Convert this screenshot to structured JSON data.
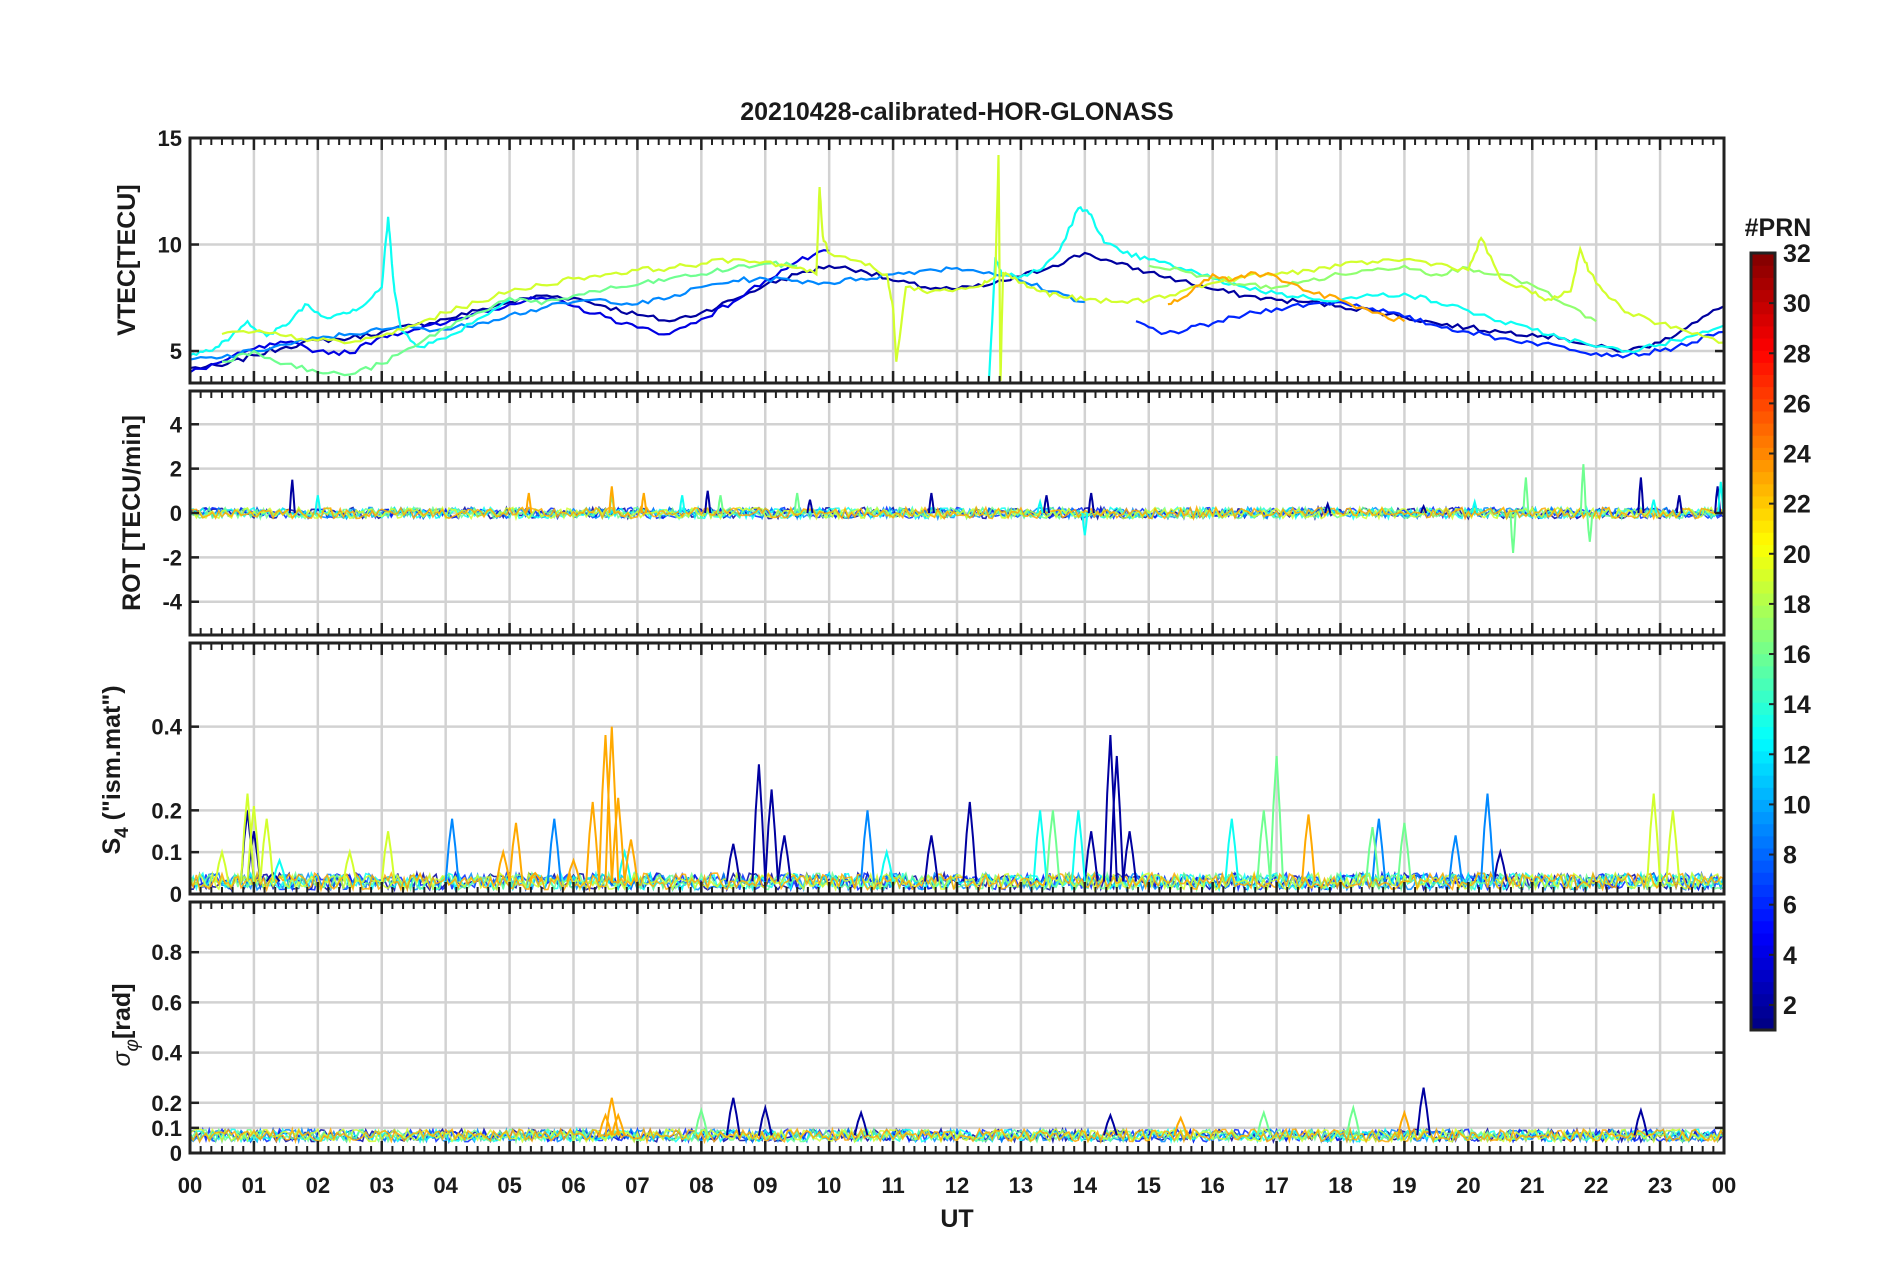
{
  "chart_data": {
    "title": "20210428-calibrated-HOR-GLONASS",
    "xlabel": "UT",
    "x_tick_labels": [
      "00",
      "01",
      "02",
      "03",
      "04",
      "05",
      "06",
      "07",
      "08",
      "09",
      "10",
      "11",
      "12",
      "13",
      "14",
      "15",
      "16",
      "17",
      "18",
      "19",
      "20",
      "21",
      "22",
      "23",
      "00"
    ],
    "xlim": [
      0,
      24
    ],
    "colorbar": {
      "label": "#PRN",
      "range": [
        1,
        32
      ],
      "tick_values": [
        2,
        4,
        6,
        8,
        10,
        12,
        14,
        16,
        18,
        20,
        22,
        24,
        26,
        28,
        30,
        32
      ],
      "tick_labels": [
        "2",
        "4",
        "6",
        "8",
        "10",
        "12",
        "14",
        "16",
        "18",
        "20",
        "22",
        "24",
        "26",
        "28",
        "30",
        "32"
      ],
      "colormap": "jet"
    },
    "panels": [
      {
        "type": "line",
        "id": "vtec",
        "ylabel": "VTEC[TECU]",
        "ylim": [
          3.5,
          15
        ],
        "y_ticks": [
          5,
          10,
          15
        ],
        "y_tick_labels": [
          "5",
          "10",
          "15"
        ],
        "series": [
          {
            "name": "PRN 2",
            "prn": 2,
            "x": [
              0,
              0.5,
              1,
              1.5,
              2,
              2.5,
              3,
              3.5,
              4,
              4.5,
              5,
              5.5,
              6,
              6.5,
              7,
              7.5,
              8,
              8.5,
              9,
              9.5,
              10,
              10.5,
              11,
              11.5,
              12,
              12.5,
              13,
              13.5,
              14,
              14.5,
              15,
              15.5,
              16,
              16.5,
              17,
              17.5,
              18,
              18.5,
              19,
              19.5,
              20,
              20.5,
              21,
              21.5,
              22,
              22.5,
              23,
              23.5,
              24
            ],
            "y": [
              4.2,
              4.3,
              4.8,
              5.2,
              5.5,
              5.6,
              5.9,
              6.2,
              6.5,
              6.9,
              7.3,
              7.6,
              7.5,
              7.1,
              6.7,
              6.4,
              6.8,
              7.4,
              8.1,
              8.6,
              9.0,
              8.8,
              8.3,
              8.0,
              7.9,
              8.1,
              8.5,
              9.0,
              9.6,
              9.1,
              8.7,
              8.3,
              7.9,
              7.6,
              7.4,
              7.3,
              7.1,
              6.9,
              6.6,
              6.3,
              6.1,
              5.9,
              5.8,
              5.6,
              5.2,
              5.0,
              5.4,
              6.3,
              7.1
            ]
          },
          {
            "name": "PRN 4",
            "prn": 4,
            "x": [
              0,
              0.5,
              1,
              1.5,
              2,
              2.5,
              3,
              3.5,
              4,
              4.5,
              5,
              5.5,
              6,
              6.5,
              7,
              7.5,
              8,
              8.5,
              9,
              9.5,
              10
            ],
            "y": [
              4.0,
              4.5,
              5.1,
              5.4,
              5.0,
              4.9,
              5.7,
              6.0,
              6.3,
              6.8,
              7.2,
              7.5,
              7.1,
              6.6,
              6.1,
              5.8,
              6.5,
              7.3,
              8.3,
              9.2,
              9.7
            ]
          },
          {
            "name": "PRN 6",
            "prn": 6,
            "x": [
              14.8,
              15.2,
              15.6,
              16,
              16.5,
              17,
              17.5,
              18,
              18.5,
              19,
              19.5,
              20,
              20.5,
              21,
              21.5,
              22,
              22.5,
              23,
              23.5,
              24
            ],
            "y": [
              6.4,
              5.8,
              6.0,
              6.3,
              6.7,
              7.0,
              7.2,
              7.3,
              7.0,
              6.6,
              6.2,
              5.9,
              5.6,
              5.4,
              5.2,
              4.9,
              4.8,
              5.0,
              5.4,
              5.9
            ]
          },
          {
            "name": "PRN 9",
            "prn": 9,
            "x": [
              0,
              0.5,
              1,
              1.5,
              2,
              2.5,
              3,
              3.5,
              4,
              4.5,
              5,
              5.5,
              6,
              6.5,
              7,
              7.5,
              8,
              8.5,
              9,
              9.5,
              10,
              10.5,
              11,
              11.5,
              12,
              12.5,
              13,
              13.5,
              14
            ],
            "y": [
              4.6,
              4.7,
              5.0,
              5.3,
              5.6,
              5.8,
              6.0,
              6.1,
              6.0,
              6.3,
              6.7,
              7.0,
              7.3,
              7.4,
              7.2,
              7.5,
              8.0,
              8.3,
              8.4,
              8.3,
              8.2,
              8.4,
              8.6,
              8.8,
              8.9,
              8.7,
              8.3,
              7.8,
              7.3
            ]
          },
          {
            "name": "PRN 13",
            "prn": 13,
            "x": [
              0,
              0.3,
              0.6,
              0.9,
              1.2,
              1.5,
              1.8,
              2.1,
              2.4,
              2.7,
              3.0,
              3.1,
              3.15,
              3.2,
              3.3,
              3.6,
              4.0,
              4.5,
              5.0
            ],
            "y": [
              4.8,
              5.0,
              5.5,
              6.4,
              5.7,
              6.2,
              7.2,
              6.6,
              6.8,
              7.1,
              8.0,
              11.3,
              9.5,
              7.8,
              6.0,
              5.2,
              5.6,
              6.5,
              7.4
            ]
          },
          {
            "name": "PRN 13b",
            "prn": 13,
            "x": [
              12.5,
              12.6,
              12.7,
              13,
              13.3,
              13.6,
              13.9,
              14.1,
              14.3,
              14.6,
              15,
              15.5,
              16,
              16.5,
              17,
              17.5,
              18,
              18.5,
              19,
              19.5,
              20,
              20.5,
              21,
              21.5,
              22,
              22.5,
              23,
              23.5,
              24
            ],
            "y": [
              3.6,
              9.4,
              8.6,
              8.5,
              8.8,
              9.7,
              11.7,
              11.4,
              10.1,
              9.6,
              9.3,
              8.9,
              8.4,
              8.0,
              7.7,
              7.5,
              7.4,
              7.6,
              7.7,
              7.3,
              6.9,
              6.4,
              6.0,
              5.6,
              5.2,
              5.0,
              5.3,
              5.7,
              6.2
            ]
          },
          {
            "name": "PRN 16",
            "prn": 16,
            "x": [
              0.5,
              1,
              1.5,
              2,
              2.5,
              3,
              3.5,
              4,
              4.5,
              5,
              5.5,
              6,
              6.5,
              7,
              7.5,
              8,
              8.5,
              9,
              9.5
            ],
            "y": [
              4.5,
              5.0,
              4.4,
              4.0,
              3.9,
              4.4,
              5.2,
              6.1,
              6.8,
              7.5,
              7.2,
              7.6,
              7.9,
              8.1,
              8.4,
              8.6,
              8.9,
              9.1,
              9.0
            ]
          },
          {
            "name": "PRN 17",
            "prn": 17,
            "x": [
              15,
              15.5,
              16,
              16.5,
              17,
              17.5,
              18,
              18.5,
              19,
              19.5,
              20,
              20.5,
              21,
              21.5,
              22
            ],
            "y": [
              9.0,
              8.8,
              8.4,
              8.1,
              8.0,
              8.3,
              8.6,
              8.8,
              9.0,
              8.6,
              8.9,
              8.6,
              8.1,
              7.2,
              6.4
            ]
          },
          {
            "name": "PRN 19",
            "prn": 19,
            "x": [
              0.5,
              1,
              1.5,
              2,
              2.5,
              3,
              3.5,
              4,
              4.5,
              5,
              5.5,
              6,
              6.5,
              7,
              7.5,
              8,
              8.5,
              9,
              9.5,
              9.8,
              9.85,
              9.9,
              10,
              10.5,
              10.9,
              11.0,
              11.05,
              11.2,
              11.6,
              12,
              12.4,
              12.6,
              12.65,
              12.68,
              12.72,
              12.8,
              13,
              13.3,
              13.6,
              14,
              14.5,
              15,
              15.5,
              16,
              16.5,
              17,
              17.5,
              18,
              18.5,
              19,
              19.5,
              20,
              20.2,
              20.5,
              21,
              21.3,
              21.6,
              21.75,
              21.9,
              22.2,
              22.5,
              23,
              23.5,
              24
            ],
            "y": [
              5.8,
              5.9,
              5.7,
              5.5,
              5.4,
              5.7,
              6.2,
              6.8,
              7.3,
              7.8,
              8.1,
              8.4,
              8.6,
              8.8,
              8.9,
              9.1,
              9.3,
              9.2,
              8.9,
              8.6,
              12.7,
              10.4,
              9.6,
              9.2,
              8.6,
              7.0,
              4.5,
              8.0,
              7.8,
              7.9,
              8.1,
              8.5,
              14.2,
              3.6,
              8.7,
              8.6,
              8.2,
              7.8,
              7.6,
              7.4,
              7.3,
              7.4,
              7.8,
              8.2,
              8.5,
              8.6,
              8.8,
              9.0,
              9.2,
              9.3,
              9.1,
              8.8,
              10.3,
              8.4,
              7.7,
              7.4,
              7.8,
              9.8,
              8.7,
              7.5,
              6.8,
              6.3,
              5.8,
              5.4
            ]
          },
          {
            "name": "PRN 23",
            "prn": 23,
            "x": [
              15.3,
              15.6,
              16,
              16.3,
              16.6,
              17,
              17.5,
              18,
              18.5,
              19
            ],
            "y": [
              7.2,
              7.6,
              8.6,
              8.3,
              8.7,
              8.5,
              7.8,
              7.4,
              6.8,
              6.4
            ]
          }
        ]
      },
      {
        "type": "line",
        "id": "rot",
        "ylabel": "ROT [TECU/min]",
        "ylim": [
          -5.5,
          5.5
        ],
        "y_ticks": [
          -4,
          -2,
          0,
          2,
          4
        ],
        "y_tick_labels": [
          "-4",
          "-2",
          "0",
          "2",
          "4"
        ],
        "series": [
          {
            "name": "PRN 2",
            "prn": 2,
            "x": [
              1.6,
              8.1,
              9.7,
              11.6,
              13.4,
              14.1,
              17.8,
              19.3,
              22.7,
              23.3,
              23.9
            ],
            "y": [
              1.5,
              1.0,
              0.6,
              0.9,
              0.8,
              0.9,
              0.4,
              0.3,
              1.6,
              0.8,
              1.2
            ]
          },
          {
            "name": "PRN 13",
            "prn": 13,
            "x": [
              2.0,
              7.7,
              13.3,
              14.0,
              20.1,
              22.9,
              23.95
            ],
            "y": [
              0.8,
              0.8,
              0.5,
              -1.0,
              0.5,
              0.6,
              1.4
            ]
          },
          {
            "name": "PRN 16",
            "prn": 16,
            "x": [
              6.6,
              8.3,
              9.5,
              20.7,
              20.9,
              21.8,
              21.9
            ],
            "y": [
              0.8,
              0.8,
              0.9,
              -1.8,
              1.6,
              2.2,
              -1.3
            ]
          },
          {
            "name": "PRN 23",
            "prn": 23,
            "x": [
              5.3,
              6.6,
              7.1
            ],
            "y": [
              0.9,
              1.2,
              0.9
            ]
          }
        ]
      },
      {
        "type": "line",
        "id": "s4",
        "ylabel": "S4 (\"ism.mat\")",
        "ylim": [
          0,
          0.6
        ],
        "y_ticks": [
          0,
          0.1,
          0.2,
          0.4
        ],
        "y_tick_labels": [
          "0",
          "0.1",
          "0.2",
          "0.4"
        ],
        "series": [
          {
            "name": "PRN 2",
            "prn": 2,
            "x": [
              0.9,
              1.0,
              1.3,
              8.5,
              8.9,
              9.1,
              9.3,
              11.6,
              12.2,
              14.1,
              14.4,
              14.5,
              14.7,
              20.5
            ],
            "y": [
              0.2,
              0.15,
              0.05,
              0.12,
              0.31,
              0.25,
              0.14,
              0.14,
              0.22,
              0.15,
              0.38,
              0.33,
              0.15,
              0.1
            ]
          },
          {
            "name": "PRN 9",
            "prn": 9,
            "x": [
              4.1,
              5.7,
              10.6,
              18.6,
              19.8,
              20.3
            ],
            "y": [
              0.18,
              0.18,
              0.2,
              0.18,
              0.14,
              0.24
            ]
          },
          {
            "name": "PRN 13",
            "prn": 13,
            "x": [
              1.4,
              6.8,
              10.9,
              13.3,
              13.9,
              16.3
            ],
            "y": [
              0.08,
              0.1,
              0.1,
              0.2,
              0.2,
              0.18
            ]
          },
          {
            "name": "PRN 16",
            "prn": 16,
            "x": [
              13.5,
              16.8,
              17.0,
              18.5,
              19.0
            ],
            "y": [
              0.2,
              0.2,
              0.33,
              0.16,
              0.17
            ]
          },
          {
            "name": "PRN 19",
            "prn": 19,
            "x": [
              0.5,
              0.9,
              1.0,
              1.2,
              2.5,
              3.1,
              22.9,
              23.2
            ],
            "y": [
              0.1,
              0.24,
              0.21,
              0.18,
              0.1,
              0.15,
              0.24,
              0.2
            ]
          },
          {
            "name": "PRN 23",
            "prn": 23,
            "x": [
              4.9,
              5.1,
              5.4,
              6.0,
              6.3,
              6.5,
              6.6,
              6.7,
              6.9,
              17.5
            ],
            "y": [
              0.1,
              0.17,
              0.05,
              0.08,
              0.22,
              0.38,
              0.4,
              0.23,
              0.13,
              0.19
            ]
          }
        ]
      },
      {
        "type": "line",
        "id": "sigma_phi",
        "ylabel": "σφ[rad]",
        "ylim": [
          0,
          1
        ],
        "y_ticks": [
          0,
          0.1,
          0.2,
          0.4,
          0.6,
          0.8
        ],
        "y_tick_labels": [
          "0",
          "0.1",
          "0.2",
          "0.4",
          "0.6",
          "0.8"
        ],
        "series": [
          {
            "name": "PRN 2",
            "prn": 2,
            "x": [
              8.5,
              9.0,
              10.5,
              14.4,
              19.3,
              22.7
            ],
            "y": [
              0.22,
              0.18,
              0.16,
              0.15,
              0.26,
              0.17
            ]
          },
          {
            "name": "PRN 16",
            "prn": 16,
            "x": [
              8.0,
              16.8,
              18.2
            ],
            "y": [
              0.17,
              0.16,
              0.18
            ]
          },
          {
            "name": "PRN 23",
            "prn": 23,
            "x": [
              6.5,
              6.6,
              6.7,
              15.5,
              19.0
            ],
            "y": [
              0.15,
              0.22,
              0.15,
              0.14,
              0.16
            ]
          }
        ]
      }
    ]
  }
}
